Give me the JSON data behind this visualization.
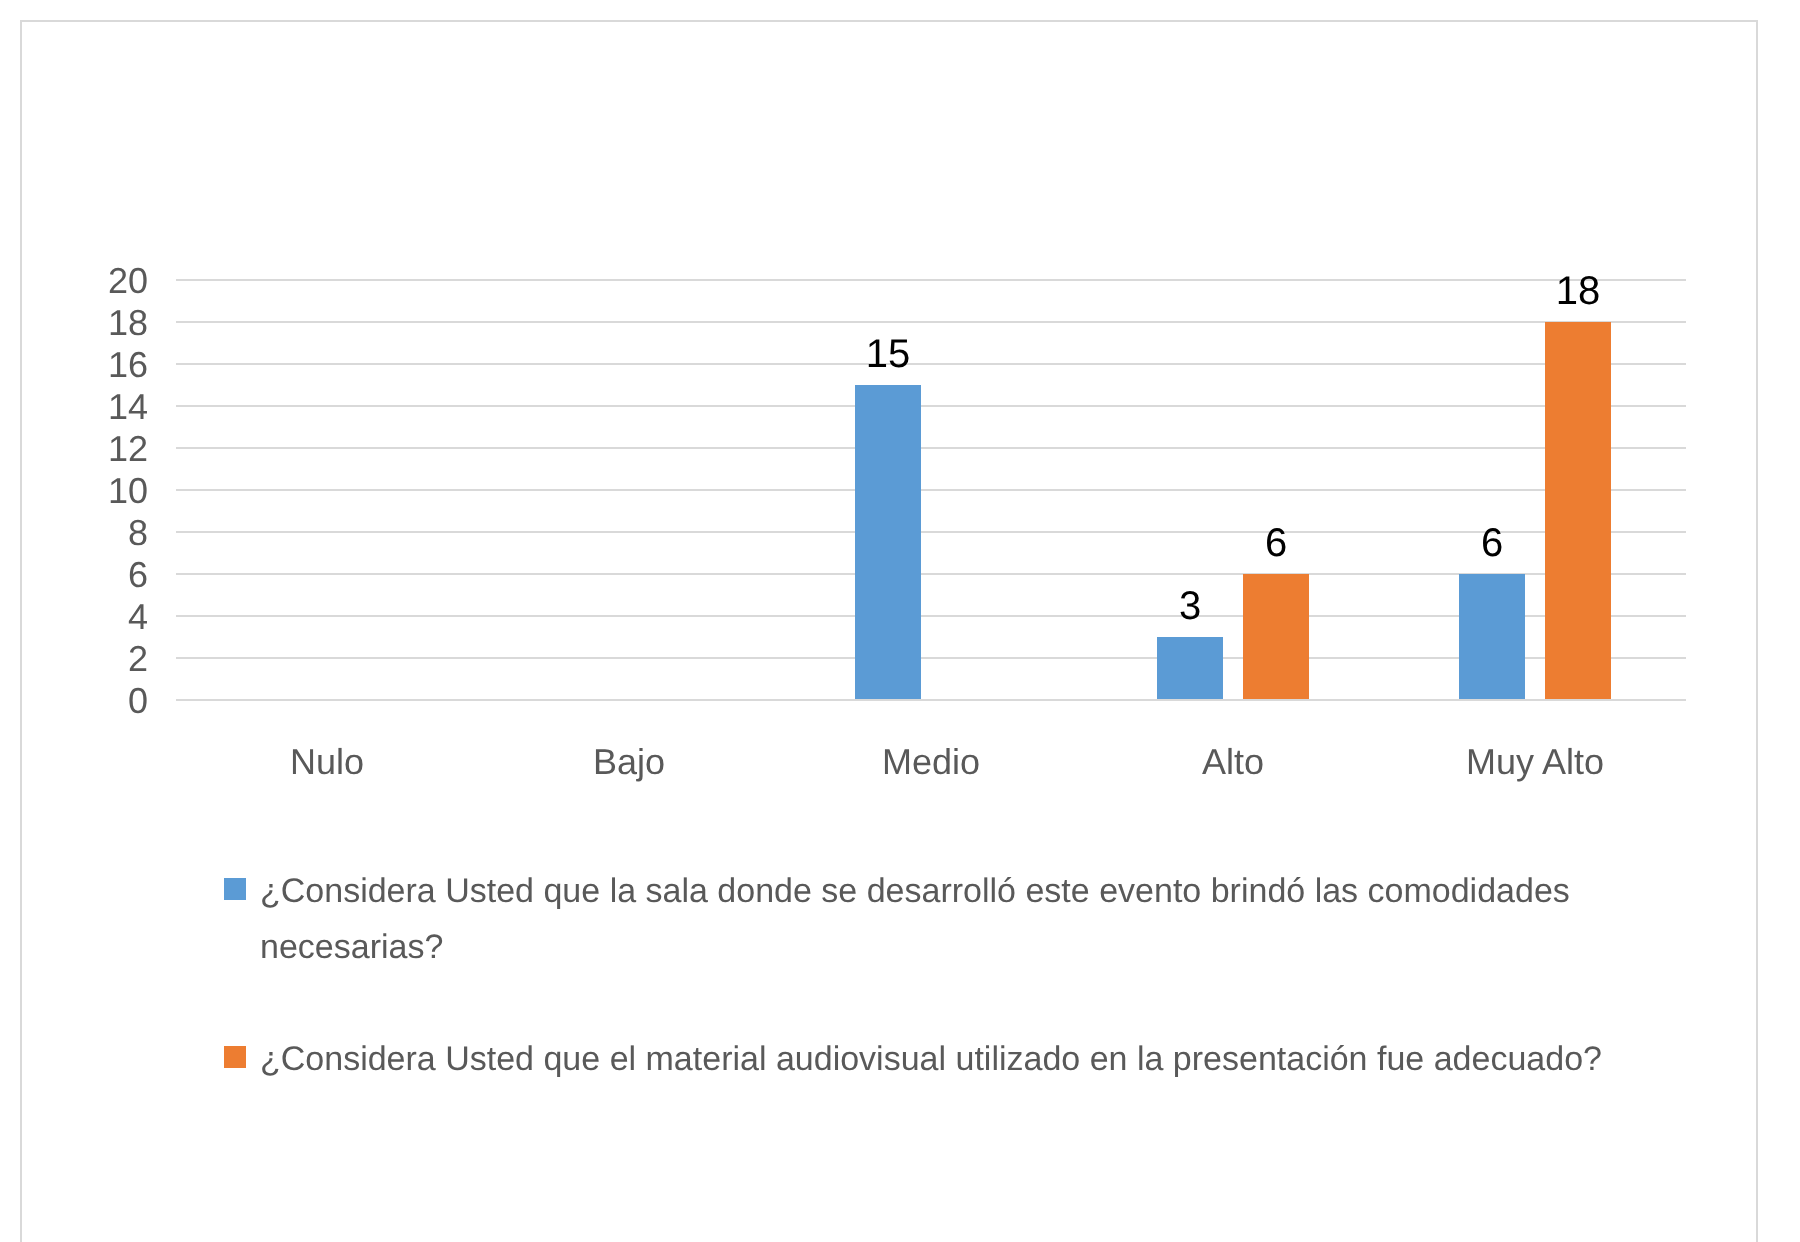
{
  "chart_data": {
    "type": "bar",
    "categories": [
      "Nulo",
      "Bajo",
      "Medio",
      "Alto",
      "Muy Alto"
    ],
    "series": [
      {
        "name": "¿Considera Usted que la sala donde se desarrolló este evento brindó las comodidades necesarias?",
        "color": "#5b9bd5",
        "values": [
          null,
          null,
          15,
          3,
          6
        ]
      },
      {
        "name": "¿Considera Usted que el material audiovisual utilizado en la presentación fue adecuado?",
        "color": "#ed7d31",
        "values": [
          null,
          null,
          null,
          6,
          18
        ]
      }
    ],
    "ylim": [
      0,
      20
    ],
    "yticks": [
      0,
      2,
      4,
      6,
      8,
      10,
      12,
      14,
      16,
      18,
      20
    ],
    "grid": "y",
    "legend": "bottom",
    "data_labels": true
  }
}
